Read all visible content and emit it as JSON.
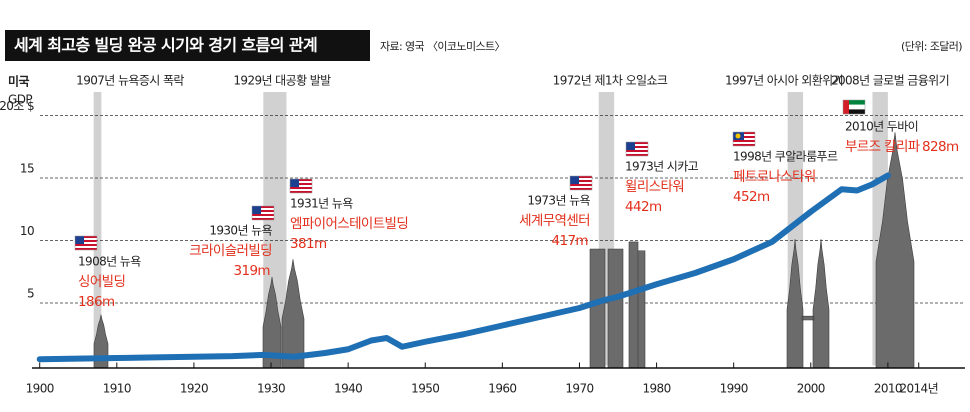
{
  "chart_data": {
    "type": "line",
    "title": "세계 최고층 빌딩 완공 시기와 경기 흐름의 관계",
    "source": "자료: 영국 〈이코노미스트〉",
    "unit": "(단위: 조달러)",
    "ylabel": [
      "미국",
      "GDP"
    ],
    "x": [
      1900,
      1905,
      1910,
      1915,
      1920,
      1925,
      1929,
      1933,
      1937,
      1940,
      1943,
      1945,
      1947,
      1950,
      1955,
      1960,
      1965,
      1970,
      1973,
      1975,
      1980,
      1985,
      1990,
      1995,
      2000,
      2004,
      2006,
      2008,
      2010
    ],
    "values": [
      0.5,
      0.55,
      0.6,
      0.65,
      0.7,
      0.75,
      0.85,
      0.7,
      1.0,
      1.3,
      2.0,
      2.2,
      1.5,
      1.9,
      2.5,
      3.2,
      3.9,
      4.6,
      5.2,
      5.5,
      6.5,
      7.4,
      8.5,
      9.9,
      12.3,
      14.1,
      14.0,
      14.5,
      15.2
    ],
    "color": "#1f6fb5",
    "xlim": [
      1899,
      2020
    ],
    "xticks": [
      1900,
      1910,
      1920,
      1930,
      1940,
      1950,
      1960,
      1970,
      1980,
      1990,
      2000,
      2010,
      {
        "value": 2014,
        "label": "2014년"
      }
    ],
    "ylim": [
      0,
      23
    ],
    "yticks": [
      5,
      10,
      15,
      {
        "value": 20,
        "label": "20조 $"
      }
    ],
    "grid": true,
    "periods": [
      {
        "label": "1907년 뉴욕증시 폭락",
        "start": 1907,
        "end": 1908
      },
      {
        "label": "1929년 대공황 발발",
        "start": 1929,
        "end": 1932
      },
      {
        "label": "1972년 제1차 오일쇼크",
        "start": 1972.5,
        "end": 1974.5
      },
      {
        "label": "1997년 아시아 외환위기",
        "start": 1997,
        "end": 1999
      },
      {
        "label": "2008년 글로벌 금융위기",
        "start": 2008,
        "end": 2010
      }
    ],
    "buildings": [
      {
        "place": "1908년 뉴욕",
        "name": "싱어빌딩",
        "height": 186,
        "height_label": "186m"
      },
      {
        "place": "1930년 뉴욕",
        "name": "크라이슬러빌딩",
        "height": 319,
        "height_label": "319m"
      },
      {
        "place": "1931년 뉴욕",
        "name": "엠파이어스테이트빌딩",
        "height": 381,
        "height_label": "381m"
      },
      {
        "place": "1973년 뉴욕",
        "name": "세계무역센터",
        "height": 417,
        "height_label": "417m"
      },
      {
        "place": "1973년 시카고",
        "name": "윌리스타워",
        "height": 442,
        "height_label": "442m"
      },
      {
        "place": "1998년 쿠알라룸푸르",
        "name": "페트로나스타워",
        "height": 452,
        "height_label": "452m"
      },
      {
        "place": "2010년 두바이",
        "name": "부르즈 칼리파",
        "height": 828,
        "height_label": "828m"
      }
    ]
  }
}
